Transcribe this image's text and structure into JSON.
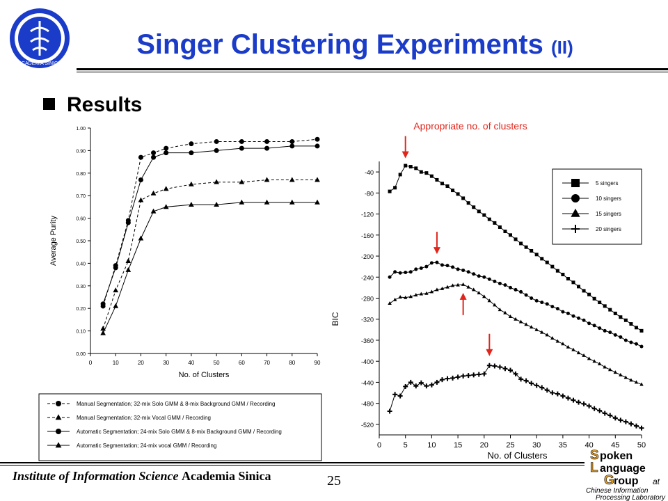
{
  "slide": {
    "title_main": "Singer Clustering Experiments",
    "title_sub": "(II)",
    "bullet_heading": "Results",
    "footer_institute_italic": "Institute of Information Science",
    "footer_institute_bold": "Academia Sinica",
    "page_number": "25",
    "logo_left_text": "ACADEMIA SINICA",
    "logo_right_lines": [
      "poken",
      "anguage",
      "roup"
    ],
    "logo_right_initials": [
      "S",
      "L",
      "G"
    ],
    "logo_right_at": "at",
    "logo_right_sub1": "Chinese Information",
    "logo_right_sub2": "Processing Laboratory",
    "colors": {
      "accent_blue": "#1a3cc8",
      "annotation_red": "#e0261c"
    }
  },
  "chart_data": [
    {
      "type": "line",
      "xlabel": "No. of Clusters",
      "ylabel": "Average Purity",
      "xlim": [
        0,
        90
      ],
      "ylim": [
        0,
        1
      ],
      "xticks": [
        "0",
        "10",
        "20",
        "30",
        "40",
        "50",
        "60",
        "70",
        "80",
        "90"
      ],
      "yticks": [
        "0.00",
        "0.10",
        "0.20",
        "0.30",
        "0.40",
        "0.50",
        "0.60",
        "0.70",
        "0.80",
        "0.90",
        "1.00"
      ],
      "x": [
        5,
        10,
        15,
        20,
        25,
        30,
        40,
        50,
        60,
        70,
        80,
        90
      ],
      "legend_position": "bottom, boxed below chart",
      "series": [
        {
          "name": "Manual Segmentation; 32-mix Solo GMM & 8-mix Background GMM / Recording",
          "marker": "circle",
          "dash": "dashed",
          "values": [
            0.21,
            0.39,
            0.59,
            0.87,
            0.89,
            0.91,
            0.93,
            0.94,
            0.94,
            0.94,
            0.94,
            0.95
          ]
        },
        {
          "name": "Manual Segmentation; 32-mix Vocal GMM / Recording",
          "marker": "triangle",
          "dash": "dashed",
          "values": [
            0.11,
            0.28,
            0.41,
            0.68,
            0.71,
            0.73,
            0.75,
            0.76,
            0.76,
            0.77,
            0.77,
            0.77
          ]
        },
        {
          "name": "Automatic Segmentation; 24-mix Solo GMM & 8-mix Background GMM / Recording",
          "marker": "circle",
          "dash": "solid",
          "values": [
            0.22,
            0.38,
            0.58,
            0.77,
            0.87,
            0.89,
            0.89,
            0.9,
            0.91,
            0.91,
            0.92,
            0.92
          ]
        },
        {
          "name": "Automatic Segmentation; 24-mix vocal GMM / Recording",
          "marker": "triangle",
          "dash": "solid",
          "values": [
            0.09,
            0.21,
            0.37,
            0.51,
            0.63,
            0.65,
            0.66,
            0.66,
            0.67,
            0.67,
            0.67,
            0.67
          ]
        }
      ]
    },
    {
      "type": "line",
      "annotation": "Appropriate no. of clusters",
      "xlabel": "No. of Clusters",
      "ylabel": "BIC",
      "xlim": [
        0,
        50
      ],
      "ylim": [
        -540,
        -20
      ],
      "xticks": [
        "0",
        "5",
        "10",
        "15",
        "20",
        "25",
        "30",
        "35",
        "40",
        "45",
        "50"
      ],
      "yticks": [
        "-40",
        "-80",
        "-120",
        "-160",
        "-200",
        "-240",
        "-280",
        "-320",
        "-360",
        "-400",
        "-440",
        "-480",
        "-520"
      ],
      "x": [
        2,
        3,
        4,
        5,
        6,
        7,
        8,
        9,
        10,
        11,
        12,
        13,
        14,
        15,
        16,
        17,
        18,
        19,
        20,
        21,
        22,
        23,
        24,
        25,
        26,
        27,
        28,
        29,
        30,
        31,
        32,
        33,
        34,
        35,
        36,
        37,
        38,
        39,
        40,
        41,
        42,
        43,
        44,
        45,
        46,
        47,
        48,
        49,
        50
      ],
      "legend_position": "top-right",
      "arrows": [
        {
          "x": 5,
          "y": -30,
          "direction": "down"
        },
        {
          "x": 11,
          "y": -212,
          "direction": "down"
        },
        {
          "x": 16,
          "y": -254,
          "direction": "up"
        },
        {
          "x": 21,
          "y": -406,
          "direction": "down"
        }
      ],
      "series": [
        {
          "name": "5 singers",
          "marker": "square",
          "values": [
            -77,
            -70,
            -45,
            -28,
            -30,
            -33,
            -40,
            -42,
            -48,
            -55,
            -62,
            -67,
            -75,
            -82,
            -90,
            -99,
            -107,
            -115,
            -122,
            -130,
            -137,
            -145,
            -153,
            -160,
            -168,
            -176,
            -183,
            -190,
            -197,
            -205,
            -212,
            -220,
            -228,
            -235,
            -243,
            -250,
            -258,
            -266,
            -273,
            -281,
            -288,
            -295,
            -302,
            -309,
            -316,
            -322,
            -329,
            -336,
            -342
          ]
        },
        {
          "name": "10 singers",
          "marker": "circle",
          "values": [
            -240,
            -230,
            -232,
            -231,
            -230,
            -225,
            -223,
            -220,
            -213,
            -212,
            -217,
            -218,
            -221,
            -225,
            -227,
            -230,
            -234,
            -238,
            -240,
            -244,
            -248,
            -252,
            -255,
            -260,
            -264,
            -268,
            -274,
            -280,
            -285,
            -288,
            -291,
            -296,
            -300,
            -306,
            -309,
            -314,
            -318,
            -322,
            -328,
            -332,
            -337,
            -342,
            -345,
            -350,
            -354,
            -360,
            -364,
            -367,
            -372
          ]
        },
        {
          "name": "15 singers",
          "marker": "triangle",
          "values": [
            -290,
            -283,
            -278,
            -279,
            -277,
            -274,
            -272,
            -271,
            -268,
            -264,
            -262,
            -259,
            -256,
            -255,
            -254,
            -259,
            -264,
            -270,
            -277,
            -285,
            -293,
            -302,
            -308,
            -315,
            -320,
            -325,
            -330,
            -335,
            -340,
            -345,
            -350,
            -356,
            -362,
            -367,
            -373,
            -378,
            -384,
            -389,
            -395,
            -400,
            -405,
            -411,
            -416,
            -421,
            -426,
            -431,
            -436,
            -440,
            -444
          ]
        },
        {
          "name": "20 singers",
          "marker": "plus",
          "values": [
            -495,
            -463,
            -466,
            -448,
            -440,
            -447,
            -441,
            -447,
            -445,
            -440,
            -435,
            -433,
            -432,
            -430,
            -428,
            -427,
            -426,
            -425,
            -424,
            -408,
            -409,
            -411,
            -414,
            -417,
            -424,
            -434,
            -437,
            -442,
            -446,
            -450,
            -455,
            -460,
            -462,
            -466,
            -470,
            -474,
            -478,
            -481,
            -485,
            -490,
            -494,
            -499,
            -503,
            -508,
            -512,
            -515,
            -519,
            -523,
            -527
          ]
        }
      ]
    }
  ]
}
